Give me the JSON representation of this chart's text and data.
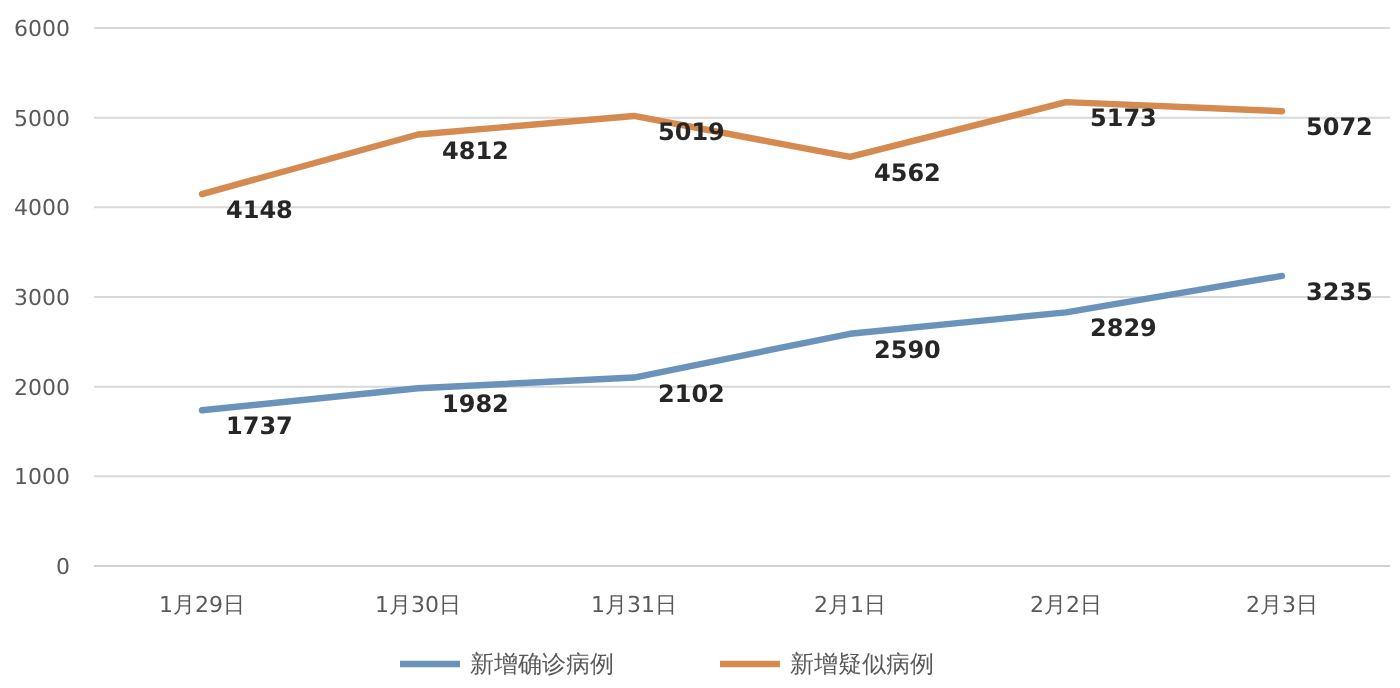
{
  "chart_data": {
    "type": "line",
    "categories": [
      "1月29日",
      "1月30日",
      "1月31日",
      "2月1日",
      "2月2日",
      "2月3日"
    ],
    "series": [
      {
        "name": "新增确诊病例",
        "color": "#6a93bb",
        "values": [
          1737,
          1982,
          2102,
          2590,
          2829,
          3235
        ]
      },
      {
        "name": "新增疑似病例",
        "color": "#d58a4f",
        "values": [
          4148,
          4812,
          5019,
          4562,
          5173,
          5072
        ]
      }
    ],
    "ylim": [
      0,
      6000
    ],
    "yticks": [
      0,
      1000,
      2000,
      3000,
      4000,
      5000,
      6000
    ],
    "grid": "y",
    "legend": "bottom",
    "data_labels": true
  }
}
